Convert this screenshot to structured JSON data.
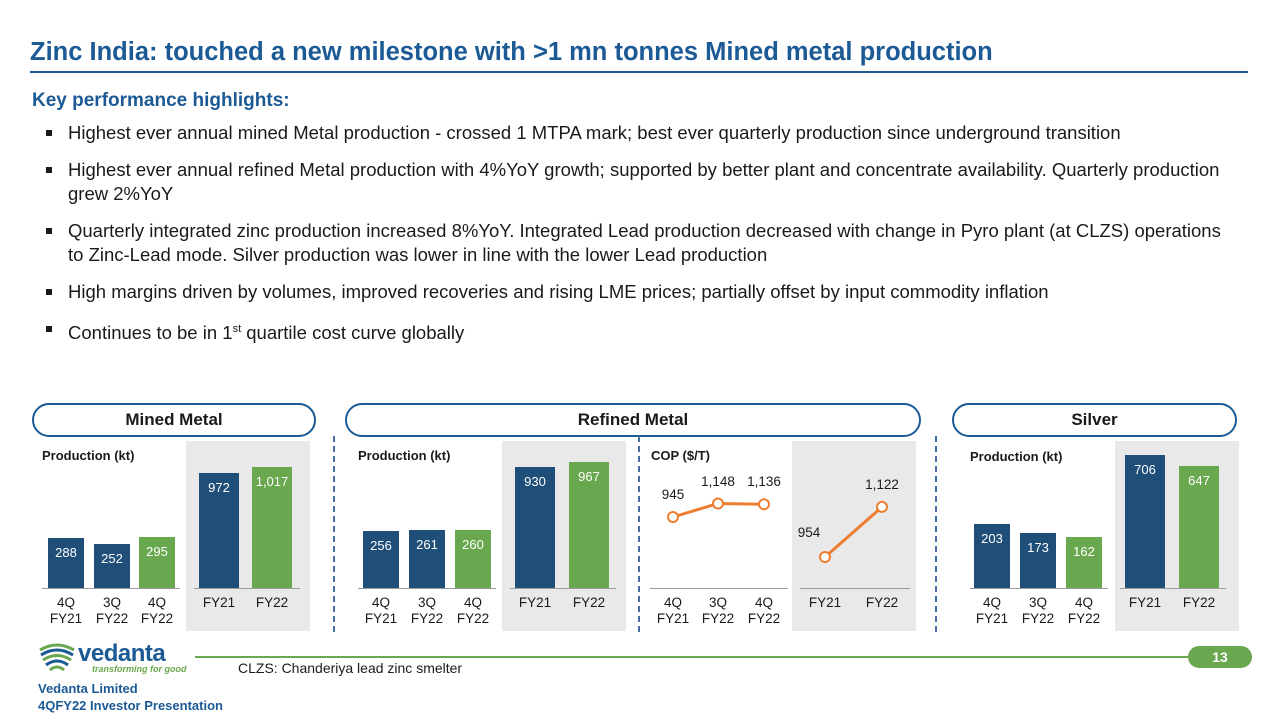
{
  "title": "Zinc India: touched a new milestone with >1 mn tonnes Mined metal production",
  "subtitle": "Key performance highlights:",
  "bullets": [
    "Highest ever annual mined Metal production - crossed 1 MTPA mark; best ever quarterly production since underground transition",
    "Highest ever annual refined Metal production with 4%YoY growth; supported by better plant and concentrate availability. Quarterly production grew 2%YoY",
    "Quarterly integrated zinc production increased 8%YoY. Integrated Lead production decreased with change in Pyro plant (at CLZS) operations to Zinc-Lead mode. Silver production was lower in line with the lower Lead production",
    "High margins driven by volumes, improved recoveries and rising LME prices; partially offset by input commodity inflation"
  ],
  "bullet5": {
    "pre": "Continues to be in 1",
    "sup": "st",
    "post": " quartile cost curve globally"
  },
  "sections": {
    "mined": "Mined Metal",
    "refined": "Refined Metal",
    "silver": "Silver"
  },
  "colors": {
    "brand_blue": "#1c5a96",
    "bar_navy": "#1f4e79",
    "bar_green": "#6aa84f",
    "line_orange": "#ed7d31",
    "shade": "#e9e9e9"
  },
  "chart_data": [
    {
      "id": "mined_q",
      "type": "bar",
      "title": "Production (kt)",
      "categories": [
        "4Q FY21",
        "3Q FY22",
        "4Q FY22"
      ],
      "values": [
        288,
        252,
        295
      ],
      "value_labels": [
        "288",
        "252",
        "295"
      ],
      "colors": [
        "#1f4e79",
        "#1f4e79",
        "#6aa84f"
      ]
    },
    {
      "id": "mined_fy",
      "type": "bar",
      "title": "",
      "categories": [
        "FY21",
        "FY22"
      ],
      "values": [
        972,
        1017
      ],
      "value_labels": [
        "972",
        "1,017"
      ],
      "colors": [
        "#1f4e79",
        "#6aa84f"
      ]
    },
    {
      "id": "refined_q",
      "type": "bar",
      "title": "Production (kt)",
      "categories": [
        "4Q FY21",
        "3Q FY22",
        "4Q FY22"
      ],
      "values": [
        256,
        261,
        260
      ],
      "value_labels": [
        "256",
        "261",
        "260"
      ],
      "colors": [
        "#1f4e79",
        "#1f4e79",
        "#6aa84f"
      ]
    },
    {
      "id": "refined_fy",
      "type": "bar",
      "title": "",
      "categories": [
        "FY21",
        "FY22"
      ],
      "values": [
        930,
        967
      ],
      "value_labels": [
        "930",
        "967"
      ],
      "colors": [
        "#1f4e79",
        "#6aa84f"
      ]
    },
    {
      "id": "cop_q",
      "type": "line",
      "title": "COP ($/T)",
      "categories": [
        "4Q FY21",
        "3Q FY22",
        "4Q FY22"
      ],
      "values": [
        945,
        1148,
        1136
      ],
      "value_labels": [
        "945",
        "1,148",
        "1,136"
      ],
      "color": "#ed7d31"
    },
    {
      "id": "cop_fy",
      "type": "line",
      "title": "",
      "categories": [
        "FY21",
        "FY22"
      ],
      "values": [
        954,
        1122
      ],
      "value_labels": [
        "954",
        "1,122"
      ],
      "color": "#ed7d31"
    },
    {
      "id": "silver_q",
      "type": "bar",
      "title": "Production (kt)",
      "categories": [
        "4Q FY21",
        "3Q FY22",
        "4Q FY22"
      ],
      "values": [
        203,
        173,
        162
      ],
      "value_labels": [
        "203",
        "173",
        "162"
      ],
      "colors": [
        "#1f4e79",
        "#1f4e79",
        "#6aa84f"
      ]
    },
    {
      "id": "silver_fy",
      "type": "bar",
      "title": "",
      "categories": [
        "FY21",
        "FY22"
      ],
      "values": [
        706,
        647
      ],
      "value_labels": [
        "706",
        "647"
      ],
      "colors": [
        "#1f4e79",
        "#6aa84f"
      ]
    }
  ],
  "footer": {
    "page_number": "13",
    "footnote": "CLZS: Chanderiya lead zinc smelter",
    "company": "Vedanta Limited",
    "presentation": "4QFY22 Investor Presentation",
    "logo_name": "vedanta",
    "logo_tagline": "transforming for good"
  }
}
